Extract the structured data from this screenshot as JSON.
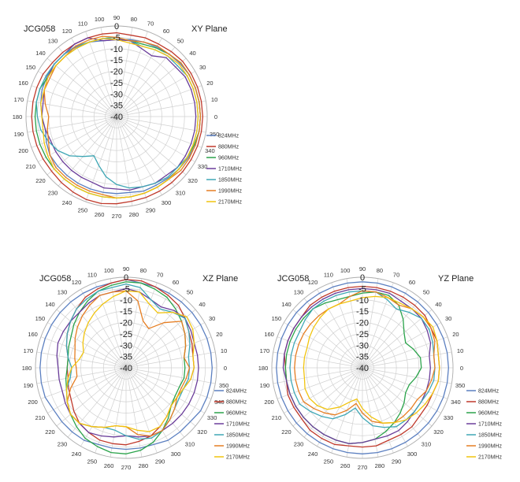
{
  "chart_data": [
    {
      "type": "polar-line",
      "product_label": "JCG058",
      "title": "XY  Plane",
      "radial_ticks": [
        "0",
        "-5",
        "-10",
        "-15",
        "-20",
        "-25",
        "-30",
        "-35",
        "-40"
      ],
      "angle_ticks": [
        "0",
        "10",
        "20",
        "30",
        "40",
        "50",
        "60",
        "70",
        "80",
        "90",
        "100",
        "110",
        "120",
        "130",
        "140",
        "150",
        "160",
        "170",
        "180",
        "190",
        "200",
        "210",
        "220",
        "230",
        "240",
        "250",
        "260",
        "270",
        "280",
        "290",
        "300",
        "310",
        "320",
        "330",
        "340",
        "350"
      ],
      "rlim": [
        -40,
        0
      ],
      "grid": true,
      "legend_position": "right",
      "series": [
        {
          "name": "824MHz",
          "color": "#5b7fc0",
          "values": [
            -3,
            -3,
            -3,
            -3,
            -3.5,
            -4,
            -4.5,
            -5,
            -5.5,
            -6,
            -6,
            -5,
            -4.5,
            -4,
            -4,
            -4.5,
            -5,
            -6,
            -7,
            -8,
            -7,
            -6,
            -6,
            -6,
            -6,
            -6,
            -6,
            -6,
            -6,
            -5,
            -5,
            -4.5,
            -4,
            -3.5,
            -3,
            -3
          ]
        },
        {
          "name": "880MHz",
          "color": "#c0392b",
          "values": [
            -2,
            -2,
            -2,
            -2,
            -2,
            -2.5,
            -3,
            -3,
            -3.5,
            -3,
            -3,
            -3,
            -3,
            -3,
            -3,
            -2.5,
            -2.5,
            -2.5,
            -2.5,
            -2.5,
            -2.5,
            -2.5,
            -2.5,
            -2,
            -1.5,
            -1,
            -1,
            -1.5,
            -2,
            -2,
            -2,
            -2,
            -2,
            -2,
            -2,
            -2
          ]
        },
        {
          "name": "960MHz",
          "color": "#2aa34a",
          "values": [
            -3,
            -3,
            -3,
            -3,
            -3,
            -4,
            -5,
            -6,
            -6,
            -5,
            -5,
            -5,
            -5,
            -5,
            -5,
            -5,
            -4,
            -4,
            -4,
            -4,
            -4,
            -4,
            -4,
            -4,
            -4,
            -4,
            -4,
            -4,
            -4,
            -4,
            -4,
            -4,
            -4,
            -4,
            -3.5,
            -3
          ]
        },
        {
          "name": "1710MHz",
          "color": "#6a3d9a",
          "values": [
            -5,
            -5,
            -5,
            -5,
            -6,
            -6,
            -9,
            -8,
            -6,
            -6,
            -6,
            -3,
            -3,
            -4,
            -4,
            -5,
            -6,
            -7,
            -7,
            -8,
            -9,
            -9,
            -9,
            -9,
            -9,
            -9,
            -8,
            -8,
            -7,
            -7,
            -6,
            -6,
            -5,
            -5,
            -5,
            -5
          ]
        },
        {
          "name": "1850MHz",
          "color": "#3fa7b5",
          "values": [
            -4,
            -4,
            -4,
            -4,
            -5,
            -5,
            -6,
            -7,
            -6,
            -5,
            -5,
            -5,
            -4,
            -4,
            -4,
            -4,
            -4,
            -4,
            -5,
            -6,
            -8,
            -10,
            -13,
            -17,
            -20,
            -17,
            -13,
            -10,
            -8,
            -7,
            -6,
            -5,
            -5,
            -4,
            -4,
            -4
          ]
        },
        {
          "name": "1990MHz",
          "color": "#e67e22",
          "values": [
            -3,
            -3,
            -3,
            -3,
            -3,
            -4,
            -4,
            -5,
            -6,
            -5,
            -4,
            -4,
            -4,
            -5,
            -5,
            -6,
            -6,
            -8,
            -10,
            -9,
            -8,
            -6,
            -5,
            -5,
            -5,
            -5,
            -5,
            -4,
            -4,
            -4,
            -4,
            -4,
            -3,
            -3,
            -3,
            -3
          ]
        },
        {
          "name": "2170MHz",
          "color": "#f1c40f",
          "values": [
            -4,
            -4,
            -4,
            -4,
            -4,
            -5,
            -6,
            -7,
            -7,
            -6,
            -5,
            -5,
            -5,
            -5,
            -5,
            -5,
            -6,
            -6,
            -7,
            -7,
            -6,
            -5,
            -4,
            -4,
            -4,
            -4,
            -4,
            -4,
            -4,
            -4,
            -4,
            -4,
            -4,
            -4,
            -4,
            -4
          ]
        }
      ]
    },
    {
      "type": "polar-line",
      "product_label": "JCG058",
      "title": "XZ  Plane",
      "radial_ticks": [
        "0",
        "-5",
        "-10",
        "-15",
        "-20",
        "-25",
        "-30",
        "-35",
        "-40"
      ],
      "angle_ticks": [
        "0",
        "10",
        "20",
        "30",
        "40",
        "50",
        "60",
        "70",
        "80",
        "90",
        "100",
        "110",
        "120",
        "130",
        "140",
        "150",
        "160",
        "170",
        "180",
        "190",
        "200",
        "210",
        "220",
        "230",
        "240",
        "250",
        "260",
        "270",
        "280",
        "290",
        "300",
        "310",
        "320",
        "330",
        "340",
        "350"
      ],
      "rlim": [
        -40,
        0
      ],
      "grid": true,
      "legend_position": "right",
      "series": [
        {
          "name": "824MHz",
          "color": "#5b7fc0",
          "values": [
            -2,
            -2,
            -2,
            -2,
            -2,
            -2,
            -2,
            -2,
            -2,
            -1,
            -2,
            -2,
            -2,
            -2,
            -2,
            -2,
            -2,
            -2,
            -2,
            -2,
            -2,
            -3,
            -3,
            -3,
            -3,
            -4,
            -4,
            -4,
            -4,
            -4,
            -3,
            -3,
            -3,
            -2,
            -2,
            -2
          ]
        },
        {
          "name": "880MHz",
          "color": "#c0392b",
          "values": [
            -10,
            -10,
            -9,
            -8,
            -6,
            -4,
            -3,
            -2,
            -1,
            -1,
            -2,
            -3,
            -4,
            -6,
            -8,
            -10,
            -12,
            -14,
            -14,
            -14,
            -13,
            -12,
            -10,
            -8,
            -7,
            -6,
            -6,
            -6,
            -7,
            -8,
            -10,
            -12,
            -14,
            -14,
            -13,
            -11
          ]
        },
        {
          "name": "960MHz",
          "color": "#2aa34a",
          "values": [
            -14,
            -14,
            -12,
            -10,
            -8,
            -6,
            -4,
            -3,
            -2,
            -2,
            -3,
            -4,
            -6,
            -8,
            -10,
            -12,
            -13,
            -14,
            -14,
            -13,
            -12,
            -10,
            -8,
            -6,
            -4,
            -3,
            -2,
            -2,
            -3,
            -5,
            -8,
            -11,
            -14,
            -15,
            -15,
            -14
          ]
        },
        {
          "name": "1710MHz",
          "color": "#6a3d9a",
          "values": [
            -8,
            -8,
            -8,
            -7,
            -6,
            -7,
            -9,
            -8,
            -6,
            -5,
            -6,
            -6,
            -7,
            -8,
            -8,
            -8,
            -8,
            -9,
            -10,
            -10,
            -10,
            -9,
            -8,
            -8,
            -7,
            -8,
            -9,
            -10,
            -9,
            -8,
            -8,
            -8,
            -8,
            -8,
            -8,
            -8
          ]
        },
        {
          "name": "1850MHz",
          "color": "#3fa7b5",
          "values": [
            -12,
            -12,
            -10,
            -8,
            -6,
            -8,
            -10,
            -8,
            -4,
            -3,
            -4,
            -4,
            -5,
            -6,
            -8,
            -10,
            -12,
            -14,
            -16,
            -15,
            -12,
            -10,
            -8,
            -8,
            -10,
            -12,
            -12,
            -10,
            -8,
            -7,
            -8,
            -10,
            -12,
            -13,
            -13,
            -12
          ]
        },
        {
          "name": "1990MHz",
          "color": "#e67e22",
          "values": [
            -12,
            -14,
            -12,
            -10,
            -8,
            -14,
            -20,
            -18,
            -10,
            -6,
            -6,
            -6,
            -8,
            -10,
            -12,
            -14,
            -16,
            -17,
            -18,
            -18,
            -14,
            -10,
            -8,
            -8,
            -10,
            -12,
            -14,
            -14,
            -10,
            -8,
            -8,
            -10,
            -12,
            -14,
            -14,
            -13
          ]
        },
        {
          "name": "2170MHz",
          "color": "#f1c40f",
          "values": [
            -10,
            -10,
            -8,
            -6,
            -5,
            -8,
            -12,
            -10,
            -6,
            -6,
            -8,
            -10,
            -12,
            -14,
            -16,
            -18,
            -20,
            -19,
            -16,
            -14,
            -12,
            -10,
            -8,
            -8,
            -10,
            -12,
            -14,
            -14,
            -12,
            -10,
            -10,
            -12,
            -14,
            -14,
            -13,
            -11
          ]
        }
      ]
    },
    {
      "type": "polar-line",
      "product_label": "JCG058",
      "title": "YZ  Plane",
      "radial_ticks": [
        "0",
        "-5",
        "-10",
        "-15",
        "-20",
        "-25",
        "-30",
        "-35",
        "-40"
      ],
      "angle_ticks": [
        "0",
        "10",
        "20",
        "30",
        "40",
        "50",
        "60",
        "70",
        "80",
        "90",
        "100",
        "110",
        "120",
        "130",
        "140",
        "150",
        "160",
        "170",
        "180",
        "190",
        "200",
        "210",
        "220",
        "230",
        "240",
        "250",
        "260",
        "270",
        "280",
        "290",
        "300",
        "310",
        "320",
        "330",
        "340",
        "350"
      ],
      "rlim": [
        -40,
        0
      ],
      "grid": true,
      "legend_position": "right",
      "series": [
        {
          "name": "824MHz",
          "color": "#5b7fc0",
          "values": [
            -2,
            -2,
            -2,
            -2,
            -2,
            -2,
            -2,
            -2,
            -2,
            -2,
            -2,
            -2,
            -2,
            -2,
            -2,
            -2,
            -2,
            -2,
            -2,
            -2,
            -2,
            -2,
            -2,
            -2,
            -2,
            -2,
            -2,
            -2,
            -2,
            -2,
            -2,
            -2,
            -2,
            -2,
            -2,
            -2
          ]
        },
        {
          "name": "880MHz",
          "color": "#c0392b",
          "values": [
            -6,
            -6,
            -5,
            -5,
            -4,
            -4,
            -4,
            -4,
            -4,
            -4,
            -4,
            -4,
            -4,
            -4,
            -5,
            -5,
            -5,
            -5,
            -6,
            -6,
            -5,
            -5,
            -5,
            -4,
            -4,
            -4,
            -5,
            -5,
            -5,
            -6,
            -6,
            -6,
            -7,
            -7,
            -7,
            -6
          ]
        },
        {
          "name": "960MHz",
          "color": "#2aa34a",
          "values": [
            -14,
            -14,
            -16,
            -18,
            -16,
            -12,
            -8,
            -6,
            -6,
            -7,
            -8,
            -8,
            -7,
            -6,
            -6,
            -6,
            -6,
            -6,
            -6,
            -6,
            -6,
            -6,
            -6,
            -6,
            -6,
            -6,
            -6,
            -7,
            -8,
            -10,
            -12,
            -14,
            -16,
            -18,
            -18,
            -16
          ]
        },
        {
          "name": "1710MHz",
          "color": "#6a3d9a",
          "values": [
            -10,
            -10,
            -8,
            -7,
            -6,
            -6,
            -6,
            -5,
            -5,
            -5,
            -5,
            -5,
            -5,
            -5,
            -5,
            -5,
            -5,
            -5,
            -5,
            -6,
            -6,
            -6,
            -6,
            -6,
            -6,
            -6,
            -6,
            -7,
            -8,
            -8,
            -8,
            -9,
            -10,
            -10,
            -10,
            -10
          ]
        },
        {
          "name": "1850MHz",
          "color": "#3fa7b5",
          "values": [
            -8,
            -8,
            -7,
            -6,
            -6,
            -8,
            -10,
            -8,
            -6,
            -6,
            -6,
            -6,
            -6,
            -6,
            -7,
            -8,
            -8,
            -8,
            -8,
            -8,
            -8,
            -8,
            -10,
            -12,
            -14,
            -18,
            -22,
            -18,
            -14,
            -12,
            -10,
            -10,
            -10,
            -10,
            -9,
            -8
          ]
        },
        {
          "name": "1990MHz",
          "color": "#e67e22",
          "values": [
            -8,
            -8,
            -6,
            -5,
            -5,
            -6,
            -8,
            -7,
            -6,
            -6,
            -8,
            -10,
            -10,
            -10,
            -10,
            -10,
            -10,
            -10,
            -10,
            -10,
            -10,
            -10,
            -12,
            -14,
            -16,
            -20,
            -24,
            -20,
            -16,
            -14,
            -12,
            -12,
            -12,
            -12,
            -10,
            -9
          ]
        },
        {
          "name": "2170MHz",
          "color": "#f1c40f",
          "values": [
            -6,
            -6,
            -5,
            -4,
            -5,
            -6,
            -7,
            -7,
            -8,
            -9,
            -10,
            -10,
            -10,
            -11,
            -12,
            -13,
            -14,
            -14,
            -14,
            -14,
            -13,
            -13,
            -14,
            -16,
            -20,
            -24,
            -26,
            -22,
            -18,
            -14,
            -12,
            -10,
            -9,
            -8,
            -7,
            -6
          ]
        }
      ]
    }
  ]
}
